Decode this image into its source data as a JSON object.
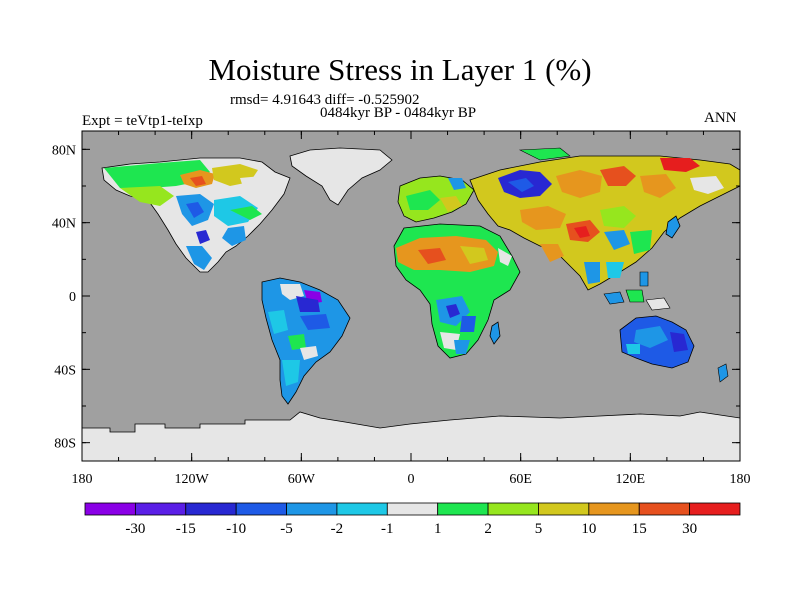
{
  "title": "Moisture Stress in Layer 1 (%)",
  "stats": "rmsd= 4.91643 diff= -0.525902",
  "period": "0484kyr BP - 0484kyr BP",
  "experiment": "Expt = teVtp1-teIxp",
  "season": "ANN",
  "x_ticks": [
    "180",
    "120W",
    "60W",
    "0",
    "60E",
    "120E",
    "180"
  ],
  "y_ticks": [
    "80N",
    "40N",
    "0",
    "40S",
    "80S"
  ],
  "colorbar": {
    "colors": [
      "#8a00e6",
      "#5a1ee6",
      "#2828d2",
      "#1e5ae6",
      "#1e96e6",
      "#1ec8e6",
      "#e6e6e6",
      "#1ee650",
      "#96e61e",
      "#d2c81e",
      "#e6961e",
      "#e6501e",
      "#e61e1e"
    ],
    "labels": [
      "-30",
      "-15",
      "-10",
      "-5",
      "-2",
      "-1",
      "1",
      "2",
      "5",
      "10",
      "15",
      "30"
    ]
  },
  "colors": {
    "ocean": "#a0a0a0",
    "no_data": "#e6e6e6"
  }
}
